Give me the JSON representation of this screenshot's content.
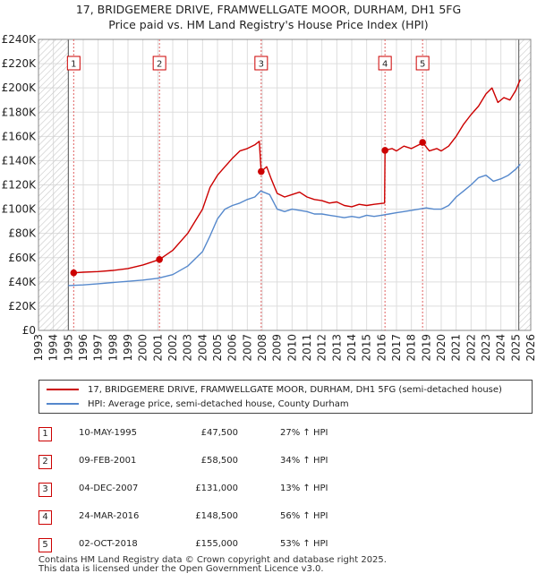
{
  "title_line1": "17, BRIDGEMERE DRIVE, FRAMWELLGATE MOOR, DURHAM, DH1 5FG",
  "title_line2": "Price paid vs. HM Land Registry's House Price Index (HPI)",
  "colors": {
    "property": "#cc0000",
    "hpi": "#5588cc",
    "vline": "#e06060",
    "hatch": "#bbbbbb",
    "grid": "#dddddd"
  },
  "chart_data": {
    "type": "line",
    "title": "17, BRIDGEMERE DRIVE, FRAMWELLGATE MOOR, DURHAM, DH1 5FG — Price paid vs. HM Land Registry's House Price Index (HPI)",
    "xlim": [
      1993,
      2026
    ],
    "ylim": [
      0,
      240000
    ],
    "x_ticks": [
      1993,
      1994,
      1995,
      1996,
      1997,
      1998,
      1999,
      2000,
      2001,
      2002,
      2003,
      2004,
      2005,
      2006,
      2007,
      2008,
      2009,
      2010,
      2011,
      2012,
      2013,
      2014,
      2015,
      2016,
      2017,
      2018,
      2019,
      2020,
      2021,
      2022,
      2023,
      2024,
      2025,
      2026
    ],
    "y_ticks": [
      {
        "value": 0,
        "label": "£0"
      },
      {
        "value": 20000,
        "label": "£20K"
      },
      {
        "value": 40000,
        "label": "£40K"
      },
      {
        "value": 60000,
        "label": "£60K"
      },
      {
        "value": 80000,
        "label": "£80K"
      },
      {
        "value": 100000,
        "label": "£100K"
      },
      {
        "value": 120000,
        "label": "£120K"
      },
      {
        "value": 140000,
        "label": "£140K"
      },
      {
        "value": 160000,
        "label": "£160K"
      },
      {
        "value": 180000,
        "label": "£180K"
      },
      {
        "value": 200000,
        "label": "£200K"
      },
      {
        "value": 220000,
        "label": "£220K"
      },
      {
        "value": 240000,
        "label": "£240K"
      }
    ],
    "hatched_ranges": [
      [
        1993,
        1995.0
      ],
      [
        2025.2,
        2026
      ]
    ],
    "series": [
      {
        "name": "17, BRIDGEMERE DRIVE, FRAMWELLGATE MOOR, DURHAM, DH1 5FG (semi-detached house)",
        "color": "#cc0000",
        "points": [
          [
            1995.36,
            47500
          ],
          [
            1996,
            48000
          ],
          [
            1997,
            48500
          ],
          [
            1998,
            49500
          ],
          [
            1999,
            51000
          ],
          [
            2000,
            54000
          ],
          [
            2001.11,
            58500
          ],
          [
            2002,
            66000
          ],
          [
            2003,
            80000
          ],
          [
            2003.5,
            90000
          ],
          [
            2004,
            100000
          ],
          [
            2004.5,
            118000
          ],
          [
            2005,
            128000
          ],
          [
            2005.5,
            135000
          ],
          [
            2006,
            142000
          ],
          [
            2006.5,
            148000
          ],
          [
            2007,
            150000
          ],
          [
            2007.5,
            153000
          ],
          [
            2007.8,
            156000
          ],
          [
            2007.93,
            131000
          ],
          [
            2008.3,
            135000
          ],
          [
            2008.6,
            125000
          ],
          [
            2009,
            113000
          ],
          [
            2009.5,
            110000
          ],
          [
            2010,
            112000
          ],
          [
            2010.5,
            114000
          ],
          [
            2011,
            110000
          ],
          [
            2011.5,
            108000
          ],
          [
            2012,
            107000
          ],
          [
            2012.5,
            105000
          ],
          [
            2013,
            106000
          ],
          [
            2013.5,
            103000
          ],
          [
            2014,
            102000
          ],
          [
            2014.5,
            104000
          ],
          [
            2015,
            103000
          ],
          [
            2015.5,
            104000
          ],
          [
            2016.2,
            105000
          ],
          [
            2016.23,
            148500
          ],
          [
            2016.7,
            150000
          ],
          [
            2017,
            148000
          ],
          [
            2017.5,
            152000
          ],
          [
            2018,
            150000
          ],
          [
            2018.5,
            153000
          ],
          [
            2018.75,
            155000
          ],
          [
            2019.2,
            148000
          ],
          [
            2019.7,
            150000
          ],
          [
            2020,
            148000
          ],
          [
            2020.5,
            152000
          ],
          [
            2021,
            160000
          ],
          [
            2021.5,
            170000
          ],
          [
            2022,
            178000
          ],
          [
            2022.5,
            185000
          ],
          [
            2023,
            195000
          ],
          [
            2023.4,
            200000
          ],
          [
            2023.8,
            188000
          ],
          [
            2024.2,
            192000
          ],
          [
            2024.6,
            190000
          ],
          [
            2025,
            198000
          ],
          [
            2025.3,
            207000
          ]
        ]
      },
      {
        "name": "HPI: Average price, semi-detached house, County Durham",
        "color": "#5588cc",
        "points": [
          [
            1995,
            37000
          ],
          [
            1996,
            37500
          ],
          [
            1997,
            38500
          ],
          [
            1998,
            39500
          ],
          [
            1999,
            40500
          ],
          [
            2000,
            41500
          ],
          [
            2001,
            43000
          ],
          [
            2002,
            46000
          ],
          [
            2003,
            53000
          ],
          [
            2004,
            65000
          ],
          [
            2004.5,
            78000
          ],
          [
            2005,
            92000
          ],
          [
            2005.5,
            100000
          ],
          [
            2006,
            103000
          ],
          [
            2006.5,
            105000
          ],
          [
            2007,
            108000
          ],
          [
            2007.5,
            110000
          ],
          [
            2007.9,
            115000
          ],
          [
            2008.5,
            112000
          ],
          [
            2009,
            100000
          ],
          [
            2009.5,
            98000
          ],
          [
            2010,
            100000
          ],
          [
            2010.5,
            99000
          ],
          [
            2011,
            98000
          ],
          [
            2011.5,
            96000
          ],
          [
            2012,
            96000
          ],
          [
            2012.5,
            95000
          ],
          [
            2013,
            94000
          ],
          [
            2013.5,
            93000
          ],
          [
            2014,
            94000
          ],
          [
            2014.5,
            93000
          ],
          [
            2015,
            95000
          ],
          [
            2015.5,
            94000
          ],
          [
            2016,
            95000
          ],
          [
            2016.5,
            96000
          ],
          [
            2017,
            97000
          ],
          [
            2017.5,
            98000
          ],
          [
            2018,
            99000
          ],
          [
            2018.5,
            100000
          ],
          [
            2019,
            101000
          ],
          [
            2019.5,
            100000
          ],
          [
            2020,
            100000
          ],
          [
            2020.5,
            103000
          ],
          [
            2021,
            110000
          ],
          [
            2021.5,
            115000
          ],
          [
            2022,
            120000
          ],
          [
            2022.5,
            126000
          ],
          [
            2023,
            128000
          ],
          [
            2023.5,
            123000
          ],
          [
            2024,
            125000
          ],
          [
            2024.5,
            128000
          ],
          [
            2025,
            133000
          ],
          [
            2025.3,
            137000
          ]
        ]
      }
    ],
    "sales": [
      {
        "n": "1",
        "x": 1995.36,
        "price": 47500
      },
      {
        "n": "2",
        "x": 2001.11,
        "price": 58500
      },
      {
        "n": "3",
        "x": 2007.93,
        "price": 131000
      },
      {
        "n": "4",
        "x": 2016.23,
        "price": 148500
      },
      {
        "n": "5",
        "x": 2018.75,
        "price": 155000
      }
    ]
  },
  "legend": {
    "property_label": "17, BRIDGEMERE DRIVE, FRAMWELLGATE MOOR, DURHAM, DH1 5FG (semi-detached house)",
    "hpi_label": "HPI: Average price, semi-detached house, County Durham"
  },
  "transactions": [
    {
      "n": "1",
      "date": "10-MAY-1995",
      "price": "£47,500",
      "hpi": "27% ↑ HPI"
    },
    {
      "n": "2",
      "date": "09-FEB-2001",
      "price": "£58,500",
      "hpi": "34% ↑ HPI"
    },
    {
      "n": "3",
      "date": "04-DEC-2007",
      "price": "£131,000",
      "hpi": "13% ↑ HPI"
    },
    {
      "n": "4",
      "date": "24-MAR-2016",
      "price": "£148,500",
      "hpi": "56% ↑ HPI"
    },
    {
      "n": "5",
      "date": "02-OCT-2018",
      "price": "£155,000",
      "hpi": "53% ↑ HPI"
    }
  ],
  "footer_line1": "Contains HM Land Registry data © Crown copyright and database right 2025.",
  "footer_line2": "This data is licensed under the Open Government Licence v3.0."
}
